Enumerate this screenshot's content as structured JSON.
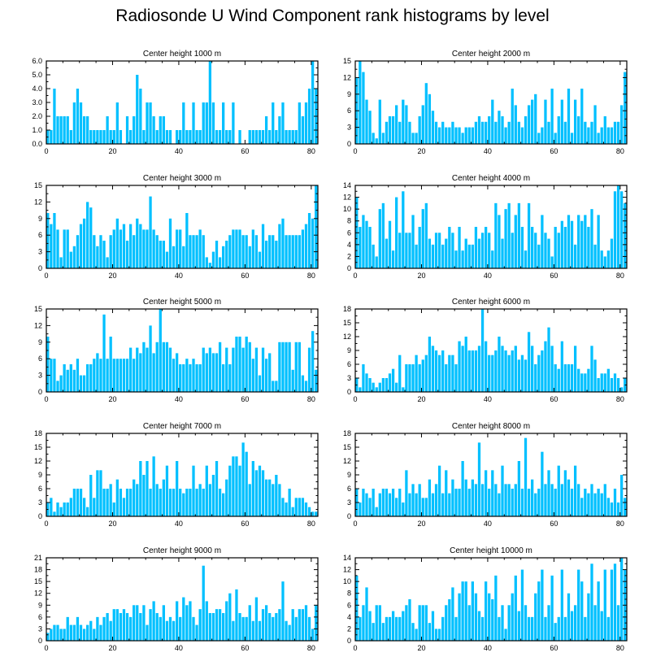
{
  "title": "Radiosonde U Wind Component rank histograms by level",
  "bar_color": "#00c0ff",
  "chart_data": [
    {
      "type": "bar",
      "title": "Center height 1000 m",
      "xlim": [
        0,
        82
      ],
      "ylim": [
        0,
        6
      ],
      "yticks": [
        0,
        1,
        2,
        3,
        4,
        5,
        6
      ],
      "ytick_labels": [
        "0.0",
        "1.0",
        "2.0",
        "3.0",
        "4.0",
        "5.0",
        "6.0"
      ],
      "xticks": [
        0,
        20,
        40,
        60,
        80
      ],
      "ylabel_side": "left",
      "values": [
        1,
        1,
        4,
        2,
        2,
        2,
        2,
        1,
        3,
        4,
        3,
        2,
        2,
        1,
        1,
        1,
        1,
        1,
        2,
        1,
        1,
        3,
        1,
        0,
        2,
        1,
        2,
        5,
        4,
        1,
        3,
        3,
        2,
        1,
        2,
        2,
        1,
        1,
        0,
        1,
        1,
        3,
        1,
        1,
        3,
        1,
        1,
        3,
        3,
        6,
        3,
        1,
        1,
        3,
        1,
        1,
        3,
        0,
        1,
        0,
        0,
        1,
        1,
        1,
        1,
        1,
        2,
        1,
        3,
        1,
        2,
        3,
        1,
        1,
        1,
        1,
        3,
        2,
        3,
        4,
        6,
        4
      ]
    },
    {
      "type": "bar",
      "title": "Center height 2000 m",
      "xlim": [
        0,
        82
      ],
      "ylim": [
        0,
        15
      ],
      "yticks": [
        0,
        3,
        6,
        9,
        12,
        15
      ],
      "ytick_labels": [
        "0",
        "3",
        "6",
        "9",
        "12",
        "15"
      ],
      "xticks": [
        0,
        20,
        40,
        60,
        80
      ],
      "ylabel_side": "left",
      "values": [
        12,
        15,
        13,
        8,
        6,
        2,
        1,
        8,
        2,
        4,
        5,
        5,
        7,
        4,
        8,
        7,
        4,
        2,
        2,
        5,
        7,
        11,
        9,
        6,
        4,
        3,
        4,
        3,
        3,
        4,
        3,
        3,
        2,
        3,
        3,
        3,
        4,
        5,
        4,
        4,
        5,
        8,
        4,
        6,
        5,
        3,
        4,
        10,
        7,
        4,
        3,
        5,
        7,
        8,
        9,
        2,
        3,
        8,
        4,
        10,
        2,
        5,
        8,
        4,
        10,
        2,
        8,
        5,
        10,
        4,
        3,
        4,
        7,
        2,
        3,
        5,
        3,
        3,
        4,
        4,
        7,
        13
      ]
    },
    {
      "type": "bar",
      "title": "Center height 3000 m",
      "xlim": [
        0,
        82
      ],
      "ylim": [
        0,
        15
      ],
      "yticks": [
        0,
        3,
        6,
        9,
        12,
        15
      ],
      "ytick_labels": [
        "0",
        "3",
        "6",
        "9",
        "12",
        "15"
      ],
      "xticks": [
        0,
        20,
        40,
        60,
        80
      ],
      "ylabel_side": "left",
      "values": [
        10,
        8,
        10,
        7,
        2,
        7,
        7,
        3,
        4,
        6,
        8,
        9,
        12,
        11,
        6,
        4,
        6,
        5,
        2,
        6,
        7,
        9,
        7,
        8,
        5,
        8,
        6,
        9,
        8,
        7,
        7,
        13,
        7,
        6,
        5,
        5,
        3,
        9,
        4,
        7,
        7,
        4,
        10,
        6,
        6,
        6,
        7,
        6,
        2,
        1,
        3,
        5,
        2,
        4,
        5,
        6,
        7,
        7,
        7,
        6,
        6,
        4,
        7,
        6,
        3,
        8,
        5,
        6,
        6,
        5,
        8,
        9,
        6,
        6,
        6,
        6,
        6,
        7,
        8,
        10,
        9,
        15
      ]
    },
    {
      "type": "bar",
      "title": "Center height 4000 m",
      "xlim": [
        0,
        82
      ],
      "ylim": [
        0,
        14
      ],
      "yticks": [
        0,
        2,
        4,
        6,
        8,
        10,
        12,
        14
      ],
      "ytick_labels": [
        "0",
        "2",
        "4",
        "6",
        "8",
        "10",
        "12",
        "14"
      ],
      "xticks": [
        0,
        20,
        40,
        60,
        80
      ],
      "ylabel_side": "left",
      "values": [
        12,
        7,
        9,
        8,
        7,
        4,
        2,
        10,
        11,
        5,
        8,
        3,
        12,
        6,
        13,
        6,
        6,
        9,
        4,
        7,
        10,
        11,
        5,
        4,
        6,
        6,
        4,
        5,
        7,
        6,
        3,
        7,
        3,
        5,
        4,
        4,
        7,
        5,
        6,
        7,
        6,
        3,
        11,
        9,
        5,
        10,
        11,
        6,
        9,
        11,
        7,
        3,
        11,
        7,
        6,
        4,
        9,
        6,
        5,
        2,
        7,
        6,
        8,
        7,
        9,
        8,
        4,
        9,
        8,
        9,
        7,
        10,
        4,
        9,
        3,
        2,
        3,
        5,
        13,
        14,
        13,
        11
      ]
    },
    {
      "type": "bar",
      "title": "Center height 5000 m",
      "xlim": [
        0,
        82
      ],
      "ylim": [
        0,
        15
      ],
      "yticks": [
        0,
        3,
        6,
        9,
        12,
        15
      ],
      "ytick_labels": [
        "0",
        "3",
        "6",
        "9",
        "12",
        "15"
      ],
      "xticks": [
        0,
        20,
        40,
        60,
        80
      ],
      "ylabel_side": "left",
      "values": [
        10,
        6,
        6,
        2,
        3,
        5,
        4,
        5,
        4,
        6,
        3,
        3,
        5,
        5,
        6,
        7,
        6,
        14,
        6,
        10,
        6,
        6,
        6,
        6,
        6,
        8,
        6,
        8,
        7,
        9,
        8,
        12,
        7,
        9,
        15,
        9,
        9,
        8,
        6,
        7,
        5,
        5,
        6,
        5,
        6,
        5,
        5,
        8,
        7,
        8,
        7,
        7,
        9,
        5,
        8,
        5,
        8,
        10,
        10,
        8,
        10,
        9,
        6,
        8,
        3,
        8,
        6,
        7,
        2,
        2,
        9,
        9,
        9,
        9,
        4,
        9,
        9,
        3,
        2,
        8,
        11,
        4
      ]
    },
    {
      "type": "bar",
      "title": "Center height 6000 m",
      "xlim": [
        0,
        82
      ],
      "ylim": [
        0,
        18
      ],
      "yticks": [
        0,
        3,
        6,
        9,
        12,
        15,
        18
      ],
      "ytick_labels": [
        "0",
        "3",
        "6",
        "9",
        "12",
        "15",
        "18"
      ],
      "xticks": [
        0,
        20,
        40,
        60,
        80
      ],
      "ylabel_side": "left",
      "values": [
        3,
        1,
        6,
        4,
        3,
        2,
        1,
        2,
        3,
        3,
        4,
        5,
        2,
        8,
        1,
        6,
        6,
        6,
        8,
        6,
        7,
        8,
        12,
        10,
        9,
        8,
        9,
        6,
        8,
        8,
        6,
        11,
        10,
        12,
        9,
        9,
        9,
        10,
        18,
        11,
        8,
        8,
        9,
        12,
        10,
        9,
        8,
        9,
        10,
        7,
        8,
        7,
        13,
        10,
        6,
        8,
        9,
        11,
        14,
        10,
        6,
        5,
        11,
        6,
        6,
        6,
        10,
        5,
        4,
        4,
        5,
        10,
        7,
        3,
        4,
        4,
        5,
        3,
        4,
        3,
        1,
        3
      ]
    },
    {
      "type": "bar",
      "title": "Center height 7000 m",
      "xlim": [
        0,
        82
      ],
      "ylim": [
        0,
        18
      ],
      "yticks": [
        0,
        3,
        6,
        9,
        12,
        15,
        18
      ],
      "ytick_labels": [
        "0",
        "3",
        "6",
        "9",
        "12",
        "15",
        "18"
      ],
      "xticks": [
        0,
        20,
        40,
        60,
        80
      ],
      "ylabel_side": "left",
      "values": [
        3,
        4,
        1,
        3,
        2,
        3,
        3,
        4,
        6,
        6,
        6,
        4,
        2,
        9,
        4,
        10,
        10,
        6,
        6,
        7,
        3,
        8,
        6,
        4,
        6,
        6,
        8,
        7,
        12,
        9,
        12,
        6,
        13,
        7,
        6,
        8,
        11,
        6,
        6,
        12,
        6,
        5,
        6,
        6,
        11,
        6,
        7,
        6,
        11,
        7,
        9,
        12,
        6,
        5,
        8,
        11,
        13,
        13,
        11,
        16,
        14,
        7,
        12,
        10,
        11,
        10,
        8,
        8,
        7,
        9,
        7,
        4,
        3,
        6,
        2,
        4,
        4,
        4,
        3,
        2,
        1,
        1
      ]
    },
    {
      "type": "bar",
      "title": "Center height 8000 m",
      "xlim": [
        0,
        82
      ],
      "ylim": [
        0,
        18
      ],
      "yticks": [
        0,
        3,
        6,
        9,
        12,
        15,
        18
      ],
      "ytick_labels": [
        "0",
        "3",
        "6",
        "9",
        "12",
        "15",
        "18"
      ],
      "xticks": [
        0,
        20,
        40,
        60,
        80
      ],
      "ylabel_side": "left",
      "values": [
        6,
        3,
        6,
        5,
        4,
        6,
        2,
        5,
        6,
        6,
        5,
        6,
        4,
        6,
        3,
        10,
        5,
        7,
        5,
        7,
        4,
        4,
        8,
        5,
        7,
        11,
        5,
        10,
        5,
        8,
        6,
        6,
        12,
        8,
        6,
        8,
        7,
        16,
        7,
        10,
        6,
        10,
        7,
        5,
        11,
        7,
        7,
        6,
        7,
        12,
        6,
        17,
        6,
        8,
        5,
        6,
        14,
        7,
        10,
        7,
        6,
        11,
        7,
        10,
        8,
        6,
        11,
        7,
        4,
        6,
        5,
        7,
        5,
        6,
        5,
        7,
        4,
        3,
        6,
        3,
        9,
        4
      ]
    },
    {
      "type": "bar",
      "title": "Center height 9000 m",
      "xlim": [
        0,
        82
      ],
      "ylim": [
        0,
        21
      ],
      "yticks": [
        0,
        3,
        6,
        9,
        12,
        15,
        18,
        21
      ],
      "ytick_labels": [
        "0",
        "3",
        "6",
        "9",
        "12",
        "15",
        "18",
        "21"
      ],
      "xticks": [
        0,
        20,
        40,
        60,
        80
      ],
      "ylabel_side": "left",
      "values": [
        2,
        3,
        4,
        4,
        3,
        3,
        6,
        4,
        4,
        6,
        4,
        3,
        4,
        5,
        3,
        6,
        4,
        6,
        7,
        5,
        8,
        8,
        7,
        8,
        7,
        6,
        9,
        9,
        7,
        9,
        4,
        8,
        10,
        7,
        6,
        9,
        5,
        6,
        5,
        10,
        6,
        11,
        9,
        10,
        6,
        4,
        8,
        19,
        10,
        7,
        7,
        8,
        8,
        7,
        10,
        12,
        5,
        13,
        7,
        6,
        6,
        9,
        5,
        11,
        5,
        8,
        9,
        7,
        6,
        7,
        8,
        15,
        5,
        4,
        8,
        6,
        8,
        8,
        9,
        6,
        3,
        9
      ]
    },
    {
      "type": "bar",
      "title": "Center height 10000 m",
      "xlim": [
        0,
        82
      ],
      "ylim": [
        0,
        14
      ],
      "yticks": [
        0,
        2,
        4,
        6,
        8,
        10,
        12,
        14
      ],
      "ytick_labels": [
        "0",
        "2",
        "4",
        "6",
        "8",
        "10",
        "12",
        "14"
      ],
      "xticks": [
        0,
        20,
        40,
        60,
        80
      ],
      "ylabel_side": "left",
      "values": [
        11,
        4,
        6,
        9,
        5,
        3,
        6,
        6,
        3,
        4,
        4,
        5,
        4,
        4,
        5,
        6,
        7,
        3,
        2,
        6,
        6,
        6,
        3,
        5,
        2,
        2,
        4,
        6,
        7,
        9,
        4,
        8,
        10,
        10,
        6,
        10,
        8,
        5,
        4,
        10,
        8,
        7,
        11,
        4,
        6,
        2,
        6,
        8,
        11,
        5,
        12,
        6,
        4,
        4,
        8,
        10,
        12,
        4,
        6,
        11,
        3,
        4,
        12,
        4,
        8,
        5,
        6,
        12,
        10,
        4,
        8,
        13,
        6,
        10,
        5,
        12,
        4,
        12,
        13,
        6,
        14,
        12
      ]
    }
  ]
}
